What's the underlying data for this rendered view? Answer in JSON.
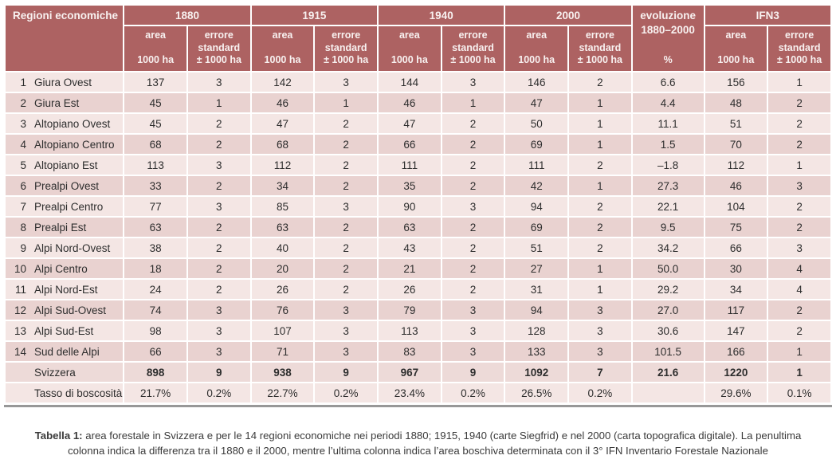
{
  "header": {
    "region_label": "Regioni economiche",
    "years": [
      "1880",
      "1915",
      "1940",
      "2000"
    ],
    "area_label": "area",
    "area_unit": "1000 ha",
    "error_label": "errore standard",
    "error_unit": "± 1000 ha",
    "evolution_label_line1": "evoluzione",
    "evolution_label_line2": "1880–2000",
    "evolution_unit": "%",
    "ifn3_label": "IFN3"
  },
  "table": {
    "rows": [
      {
        "num": "1",
        "name": "Giura Ovest",
        "values": [
          "137",
          "3",
          "142",
          "3",
          "144",
          "3",
          "146",
          "2",
          "6.6",
          "156",
          "1"
        ]
      },
      {
        "num": "2",
        "name": "Giura Est",
        "values": [
          "45",
          "1",
          "46",
          "1",
          "46",
          "1",
          "47",
          "1",
          "4.4",
          "48",
          "2"
        ]
      },
      {
        "num": "3",
        "name": "Altopiano Ovest",
        "values": [
          "45",
          "2",
          "47",
          "2",
          "47",
          "2",
          "50",
          "1",
          "11.1",
          "51",
          "2"
        ]
      },
      {
        "num": "4",
        "name": "Altopiano Centro",
        "values": [
          "68",
          "2",
          "68",
          "2",
          "66",
          "2",
          "69",
          "1",
          "1.5",
          "70",
          "2"
        ]
      },
      {
        "num": "5",
        "name": "Altopiano Est",
        "values": [
          "113",
          "3",
          "112",
          "2",
          "111",
          "2",
          "111",
          "2",
          "–1.8",
          "112",
          "1"
        ]
      },
      {
        "num": "6",
        "name": "Prealpi Ovest",
        "values": [
          "33",
          "2",
          "34",
          "2",
          "35",
          "2",
          "42",
          "1",
          "27.3",
          "46",
          "3"
        ]
      },
      {
        "num": "7",
        "name": "Prealpi Centro",
        "values": [
          "77",
          "3",
          "85",
          "3",
          "90",
          "3",
          "94",
          "2",
          "22.1",
          "104",
          "2"
        ]
      },
      {
        "num": "8",
        "name": "Prealpi Est",
        "values": [
          "63",
          "2",
          "63",
          "2",
          "63",
          "2",
          "69",
          "2",
          "9.5",
          "75",
          "2"
        ]
      },
      {
        "num": "9",
        "name": "Alpi Nord-Ovest",
        "values": [
          "38",
          "2",
          "40",
          "2",
          "43",
          "2",
          "51",
          "2",
          "34.2",
          "66",
          "3"
        ]
      },
      {
        "num": "10",
        "name": "Alpi Centro",
        "values": [
          "18",
          "2",
          "20",
          "2",
          "21",
          "2",
          "27",
          "1",
          "50.0",
          "30",
          "4"
        ]
      },
      {
        "num": "11",
        "name": "Alpi Nord-Est",
        "values": [
          "24",
          "2",
          "26",
          "2",
          "26",
          "2",
          "31",
          "1",
          "29.2",
          "34",
          "4"
        ]
      },
      {
        "num": "12",
        "name": "Alpi Sud-Ovest",
        "values": [
          "74",
          "3",
          "76",
          "3",
          "79",
          "3",
          "94",
          "3",
          "27.0",
          "117",
          "2"
        ]
      },
      {
        "num": "13",
        "name": "Alpi Sud-Est",
        "values": [
          "98",
          "3",
          "107",
          "3",
          "113",
          "3",
          "128",
          "3",
          "30.6",
          "147",
          "2"
        ]
      },
      {
        "num": "14",
        "name": "Sud delle Alpi",
        "values": [
          "66",
          "3",
          "71",
          "3",
          "83",
          "3",
          "133",
          "3",
          "101.5",
          "166",
          "1"
        ]
      }
    ],
    "total_row": {
      "num": "",
      "name": "Svizzera",
      "values": [
        "898",
        "9",
        "938",
        "9",
        "967",
        "9",
        "1092",
        "7",
        "21.6",
        "1220",
        "1"
      ]
    },
    "rate_row": {
      "num": "",
      "name": "Tasso di boscosità",
      "values": [
        "21.7%",
        "0.2%",
        "22.7%",
        "0.2%",
        "23.4%",
        "0.2%",
        "26.5%",
        "0.2%",
        "",
        "29.6%",
        "0.1%"
      ]
    }
  },
  "caption": {
    "label": "Tabella 1:",
    "text": "area forestale in Svizzera e per le 14 regioni economiche nei periodi 1880; 1915, 1940 (carte Siegfrid) e nel 2000 (carta topografica digitale). La penultima colonna indica la differenza tra il 1880 e il 2000, mentre l’ultima colonna indica l’area boschiva determinata con il 3° IFN Inventario Forestale Nazionale"
  },
  "colors": {
    "header_bg": "#ad6262",
    "header_text": "#f8f1f0",
    "row_light": "#f4e6e4",
    "row_dark": "#e9d2d0",
    "row_total": "#eddad8",
    "bottom_line": "#989898"
  },
  "chart_data": {
    "type": "table",
    "title": "Tabella 1 – area forestale in Svizzera e per le 14 regioni economiche (1880, 1915, 1940, 2000, IFN3)",
    "columns": [
      "regione economica",
      "1880 area (1000 ha)",
      "1880 errore standard (± 1000 ha)",
      "1915 area (1000 ha)",
      "1915 errore standard (± 1000 ha)",
      "1940 area (1000 ha)",
      "1940 errore standard (± 1000 ha)",
      "2000 area (1000 ha)",
      "2000 errore standard (± 1000 ha)",
      "evoluzione 1880–2000 (%)",
      "IFN3 area (1000 ha)",
      "IFN3 errore standard (± 1000 ha)"
    ],
    "rows": [
      [
        "Giura Ovest",
        137,
        3,
        142,
        3,
        144,
        3,
        146,
        2,
        6.6,
        156,
        1
      ],
      [
        "Giura Est",
        45,
        1,
        46,
        1,
        46,
        1,
        47,
        1,
        4.4,
        48,
        2
      ],
      [
        "Altopiano Ovest",
        45,
        2,
        47,
        2,
        47,
        2,
        50,
        1,
        11.1,
        51,
        2
      ],
      [
        "Altopiano Centro",
        68,
        2,
        68,
        2,
        66,
        2,
        69,
        1,
        1.5,
        70,
        2
      ],
      [
        "Altopiano Est",
        113,
        3,
        112,
        2,
        111,
        2,
        111,
        2,
        -1.8,
        112,
        1
      ],
      [
        "Prealpi Ovest",
        33,
        2,
        34,
        2,
        35,
        2,
        42,
        1,
        27.3,
        46,
        3
      ],
      [
        "Prealpi Centro",
        77,
        3,
        85,
        3,
        90,
        3,
        94,
        2,
        22.1,
        104,
        2
      ],
      [
        "Prealpi Est",
        63,
        2,
        63,
        2,
        63,
        2,
        69,
        2,
        9.5,
        75,
        2
      ],
      [
        "Alpi Nord-Ovest",
        38,
        2,
        40,
        2,
        43,
        2,
        51,
        2,
        34.2,
        66,
        3
      ],
      [
        "Alpi Centro",
        18,
        2,
        20,
        2,
        21,
        2,
        27,
        1,
        50.0,
        30,
        4
      ],
      [
        "Alpi Nord-Est",
        24,
        2,
        26,
        2,
        26,
        2,
        31,
        1,
        29.2,
        34,
        4
      ],
      [
        "Alpi Sud-Ovest",
        74,
        3,
        76,
        3,
        79,
        3,
        94,
        3,
        27.0,
        117,
        2
      ],
      [
        "Alpi Sud-Est",
        98,
        3,
        107,
        3,
        113,
        3,
        128,
        3,
        30.6,
        147,
        2
      ],
      [
        "Sud delle Alpi",
        66,
        3,
        71,
        3,
        83,
        3,
        133,
        3,
        101.5,
        166,
        1
      ],
      [
        "Svizzera",
        898,
        9,
        938,
        9,
        967,
        9,
        1092,
        7,
        21.6,
        1220,
        1
      ],
      [
        "Tasso di boscosità",
        "21.7%",
        "0.2%",
        "22.7%",
        "0.2%",
        "23.4%",
        "0.2%",
        "26.5%",
        "0.2%",
        null,
        "29.6%",
        "0.1%"
      ]
    ]
  }
}
